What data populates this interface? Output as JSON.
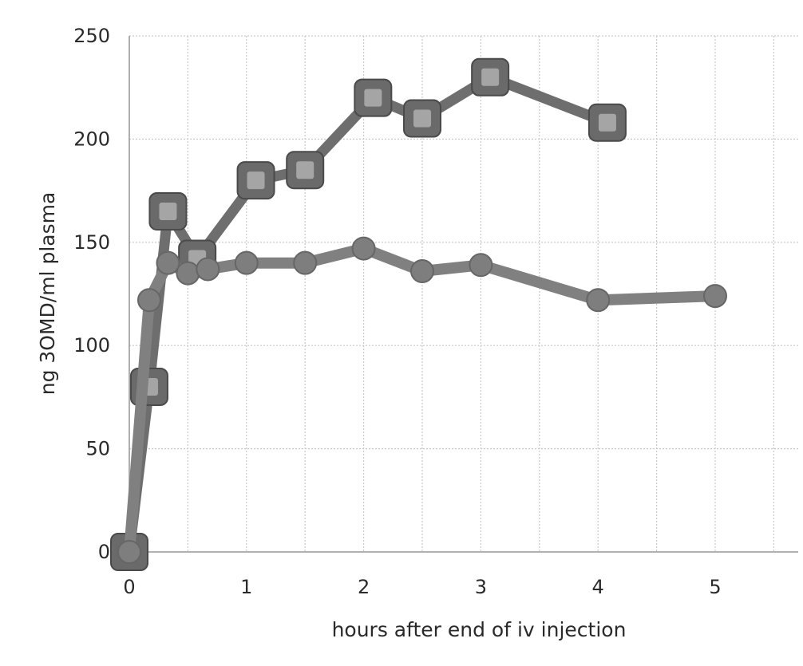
{
  "chart_data": {
    "type": "line",
    "title": "",
    "xlabel": "hours after end of iv injection",
    "ylabel": "ng 3OMD/ml plasma",
    "xlim": [
      0,
      5.5
    ],
    "ylim": [
      0,
      250
    ],
    "x_ticks": [
      0,
      1,
      2,
      3,
      4,
      5
    ],
    "y_ticks": [
      0,
      50,
      100,
      150,
      200,
      250
    ],
    "grid": true,
    "legend": "none",
    "series": [
      {
        "name": "square markers",
        "marker": "square",
        "color": "#6e6e6e",
        "points": [
          {
            "x": 0,
            "y": 0
          },
          {
            "x": 0.17,
            "y": 80
          },
          {
            "x": 0.33,
            "y": 165
          },
          {
            "x": 0.58,
            "y": 142
          },
          {
            "x": 1.08,
            "y": 180
          },
          {
            "x": 1.5,
            "y": 185
          },
          {
            "x": 2.08,
            "y": 220
          },
          {
            "x": 2.5,
            "y": 210
          },
          {
            "x": 3.08,
            "y": 230
          },
          {
            "x": 4.08,
            "y": 208
          }
        ]
      },
      {
        "name": "circle markers",
        "marker": "circle",
        "color": "#808080",
        "points": [
          {
            "x": 0,
            "y": 0
          },
          {
            "x": 0.17,
            "y": 122
          },
          {
            "x": 0.33,
            "y": 140
          },
          {
            "x": 0.5,
            "y": 135
          },
          {
            "x": 0.67,
            "y": 137
          },
          {
            "x": 1.0,
            "y": 140
          },
          {
            "x": 1.5,
            "y": 140
          },
          {
            "x": 2.0,
            "y": 147
          },
          {
            "x": 2.5,
            "y": 136
          },
          {
            "x": 3.0,
            "y": 139
          },
          {
            "x": 4.0,
            "y": 122
          },
          {
            "x": 5.0,
            "y": 124
          }
        ]
      }
    ]
  }
}
